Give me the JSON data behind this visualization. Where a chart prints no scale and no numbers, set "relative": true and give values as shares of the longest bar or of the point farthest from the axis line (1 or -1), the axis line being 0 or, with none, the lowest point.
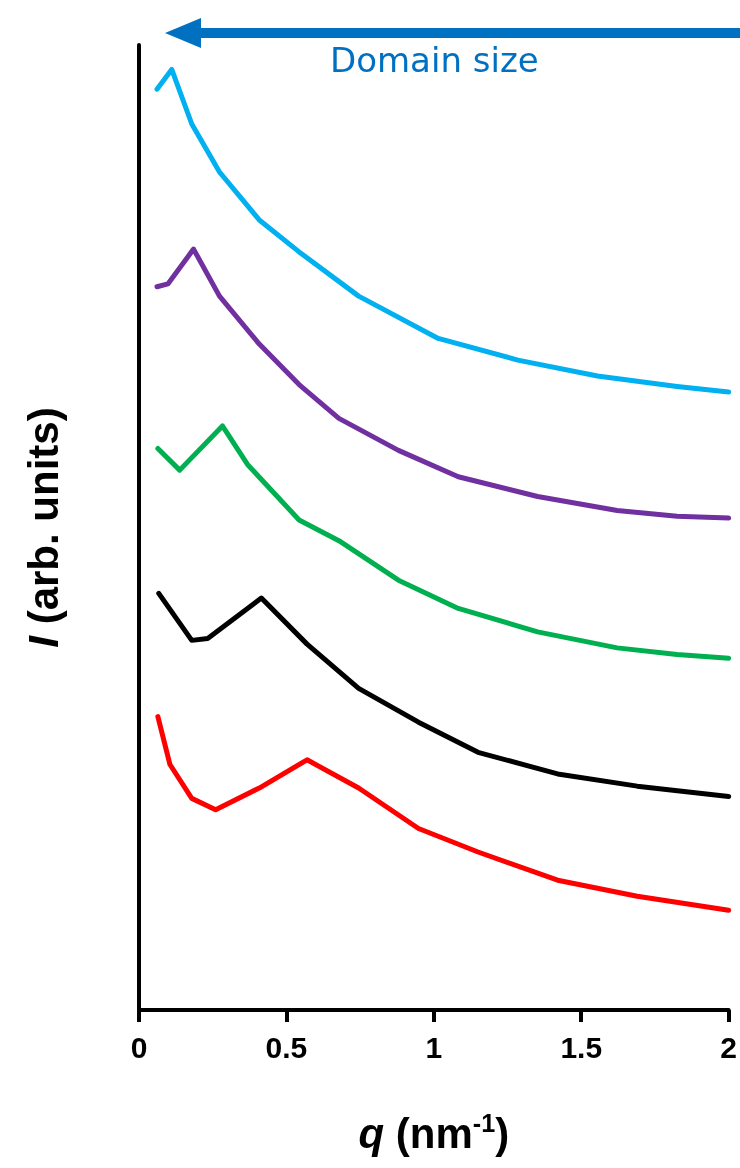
{
  "chart_data": {
    "type": "line",
    "relative": true,
    "xlabel": "q (nm$^{-1}$)",
    "ylabel": "I (arb. units)",
    "annotations": [
      "Domain size"
    ],
    "xlim": [
      0,
      2
    ],
    "xticks": [
      0,
      0.5,
      1,
      1.5,
      2
    ],
    "grid": false,
    "marker": "none",
    "line_style": "solid",
    "series": [
      {
        "color": "#00b0f0",
        "x": [
          0.061,
          0.111,
          0.179,
          0.273,
          0.408,
          0.543,
          0.745,
          1.015,
          1.285,
          1.555,
          1.825,
          2.0
        ],
        "values": [
          0.979,
          1.0,
          0.942,
          0.891,
          0.84,
          0.806,
          0.759,
          0.714,
          0.691,
          0.674,
          0.663,
          0.657
        ]
      },
      {
        "color": "#7030a0",
        "x": [
          0.061,
          0.098,
          0.185,
          0.273,
          0.408,
          0.543,
          0.678,
          0.88,
          1.083,
          1.352,
          1.622,
          1.825,
          2.0
        ],
        "values": [
          0.769,
          0.772,
          0.809,
          0.759,
          0.708,
          0.665,
          0.629,
          0.595,
          0.567,
          0.546,
          0.531,
          0.525,
          0.523
        ]
      },
      {
        "color": "#00b050",
        "x": [
          0.064,
          0.138,
          0.283,
          0.368,
          0.543,
          0.678,
          0.88,
          1.083,
          1.352,
          1.622,
          1.825,
          2.0
        ],
        "values": [
          0.597,
          0.574,
          0.621,
          0.58,
          0.521,
          0.499,
          0.457,
          0.427,
          0.402,
          0.385,
          0.378,
          0.374
        ]
      },
      {
        "color": "#000000",
        "x": [
          0.067,
          0.179,
          0.233,
          0.415,
          0.57,
          0.745,
          0.948,
          1.15,
          1.42,
          1.69,
          2.0
        ],
        "values": [
          0.443,
          0.393,
          0.395,
          0.438,
          0.389,
          0.342,
          0.306,
          0.274,
          0.251,
          0.238,
          0.227
        ]
      },
      {
        "color": "#ff0000",
        "x": [
          0.064,
          0.105,
          0.179,
          0.26,
          0.408,
          0.57,
          0.745,
          0.948,
          1.15,
          1.42,
          1.69,
          2.0
        ],
        "values": [
          0.312,
          0.261,
          0.225,
          0.213,
          0.236,
          0.266,
          0.236,
          0.193,
          0.168,
          0.138,
          0.121,
          0.106
        ]
      }
    ]
  }
}
